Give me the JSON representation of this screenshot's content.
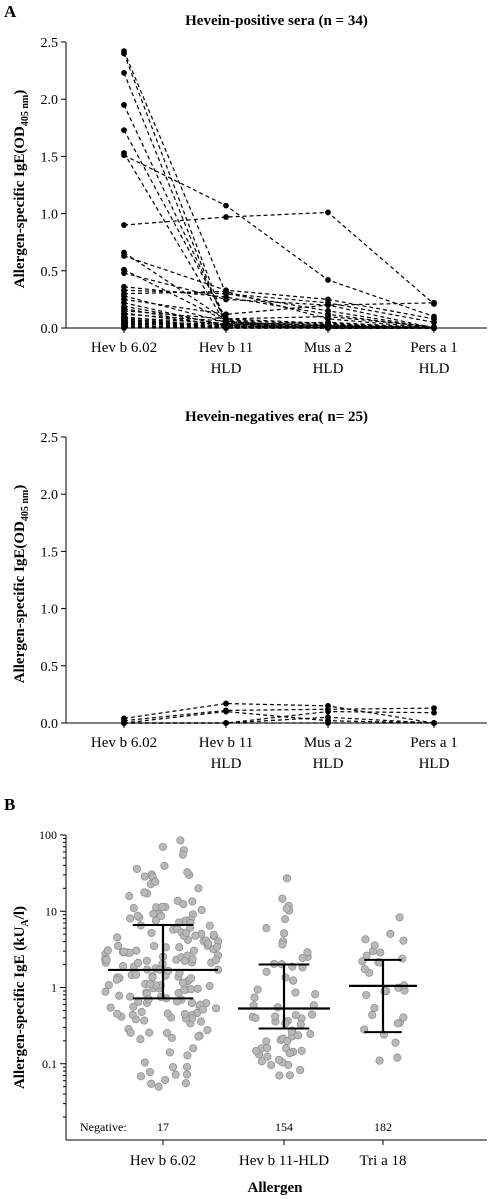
{
  "panels": {
    "a_label": "A",
    "b_label": "B"
  },
  "chart_data": [
    {
      "type": "line",
      "title": "Hevein-positive sera (n = 34)",
      "ylabel": "Allergen-specific IgE(OD",
      "ylabel_sub": "405 nm",
      "ylabel_end": ")",
      "ylim": [
        0,
        2.5
      ],
      "yticks": [
        "0.0",
        "0.5",
        "1.0",
        "1.5",
        "2.0",
        "2.5"
      ],
      "categories": [
        [
          "Hev b 6.02"
        ],
        [
          "Hev b 11",
          "HLD"
        ],
        [
          "Mus a 2",
          "HLD"
        ],
        [
          "Pers a 1",
          "HLD"
        ]
      ],
      "series": [
        {
          "values": [
            2.42,
            0.3,
            0.22,
            0.05
          ]
        },
        {
          "values": [
            2.4,
            0.04,
            0.0,
            0.0
          ]
        },
        {
          "values": [
            2.23,
            0.02,
            0.0,
            0.0
          ]
        },
        {
          "values": [
            1.95,
            0.05,
            0.02,
            0.0
          ]
        },
        {
          "values": [
            1.73,
            0.08,
            0.04,
            0.0
          ]
        },
        {
          "values": [
            1.53,
            0.03,
            0.01,
            0.0
          ]
        },
        {
          "values": [
            1.51,
            1.07,
            0.42,
            0.1
          ]
        },
        {
          "values": [
            0.9,
            0.97,
            1.01,
            0.21
          ]
        },
        {
          "values": [
            0.66,
            0.07,
            0.03,
            0.0
          ]
        },
        {
          "values": [
            0.63,
            0.33,
            0.25,
            0.08
          ]
        },
        {
          "values": [
            0.51,
            0.06,
            0.01,
            0.0
          ]
        },
        {
          "values": [
            0.48,
            0.25,
            0.2,
            0.22
          ]
        },
        {
          "values": [
            0.36,
            0.27,
            0.12,
            0.0
          ]
        },
        {
          "values": [
            0.33,
            0.3,
            0.15,
            0.0
          ]
        },
        {
          "values": [
            0.3,
            0.32,
            0.08,
            0.0
          ]
        },
        {
          "values": [
            0.28,
            0.05,
            0.02,
            0.0
          ]
        },
        {
          "values": [
            0.25,
            0.12,
            0.2,
            0.0
          ]
        },
        {
          "values": [
            0.22,
            0.02,
            0.0,
            0.0
          ]
        },
        {
          "values": [
            0.19,
            0.03,
            0.05,
            0.0
          ]
        },
        {
          "values": [
            0.17,
            0.01,
            0.0,
            0.0
          ]
        },
        {
          "values": [
            0.15,
            0.08,
            0.1,
            0.01
          ]
        },
        {
          "values": [
            0.13,
            0.02,
            0.01,
            0.0
          ]
        },
        {
          "values": [
            0.12,
            0.06,
            0.0,
            0.0
          ]
        },
        {
          "values": [
            0.1,
            0.0,
            0.03,
            0.0
          ]
        },
        {
          "values": [
            0.09,
            0.04,
            0.0,
            0.0
          ]
        },
        {
          "values": [
            0.08,
            0.01,
            0.01,
            0.0
          ]
        },
        {
          "values": [
            0.07,
            0.0,
            0.0,
            0.0
          ]
        },
        {
          "values": [
            0.06,
            0.03,
            0.02,
            0.0
          ]
        },
        {
          "values": [
            0.05,
            0.01,
            0.0,
            0.0
          ]
        },
        {
          "values": [
            0.04,
            0.0,
            0.0,
            0.0
          ]
        },
        {
          "values": [
            0.03,
            0.02,
            0.01,
            0.0
          ]
        },
        {
          "values": [
            0.02,
            0.0,
            0.0,
            0.0
          ]
        },
        {
          "values": [
            0.01,
            0.01,
            0.0,
            0.0
          ]
        },
        {
          "values": [
            0.0,
            0.0,
            0.0,
            0.0
          ]
        }
      ]
    },
    {
      "type": "line",
      "title": "Hevein-negatives  era( n=  25)",
      "ylabel": "Allergen-specific IgE(OD",
      "ylabel_sub": "405 nm",
      "ylabel_end": ")",
      "ylim": [
        0,
        2.5
      ],
      "yticks": [
        "0.0",
        "0.5",
        "1.0",
        "1.5",
        "2.0",
        "2.5"
      ],
      "categories": [
        [
          "Hev b 6.02"
        ],
        [
          "Hev b 11",
          "HLD"
        ],
        [
          "Mus a 2",
          "HLD"
        ],
        [
          "Pers a 1",
          "HLD"
        ]
      ],
      "series": [
        {
          "values": [
            0.04,
            0.17,
            0.15,
            0.0
          ]
        },
        {
          "values": [
            0.02,
            0.11,
            0.12,
            0.13
          ]
        },
        {
          "values": [
            0.0,
            0.0,
            0.1,
            0.09
          ]
        },
        {
          "values": [
            0.0,
            0.0,
            0.05,
            0.0
          ]
        },
        {
          "values": [
            0.0,
            0.1,
            0.02,
            0.0
          ]
        },
        {
          "values": [
            0.0,
            0.0,
            0.0,
            0.0
          ]
        }
      ]
    },
    {
      "type": "scatter",
      "ylabel": "Allergen-specific IgE (kU",
      "ylabel_sub": "A",
      "ylabel_end": "/l)",
      "xlabel": "Allergen",
      "y_scale": "log",
      "ylim": [
        0.01,
        100
      ],
      "yticks": [
        "0.1",
        "1",
        "10",
        "100"
      ],
      "ytick_values": [
        0.1,
        1,
        10,
        100
      ],
      "categories": [
        "Hev b 6.02",
        "Hev b 11-HLD",
        "Tri a 18"
      ],
      "negative_label": "Negative:",
      "negatives": [
        "17",
        "154",
        "182"
      ],
      "groups": [
        {
          "n": 180,
          "min": 0.05,
          "max": 85,
          "median": 1.7,
          "q1": 0.72,
          "q3": 6.6,
          "spread": 60
        },
        {
          "n": 64,
          "min": 0.07,
          "max": 27,
          "median": 0.53,
          "q1": 0.29,
          "q3": 2.0,
          "spread": 34
        },
        {
          "n": 30,
          "min": 0.11,
          "max": 8.3,
          "median": 1.05,
          "q1": 0.26,
          "q3": 2.3,
          "spread": 26
        }
      ]
    }
  ]
}
